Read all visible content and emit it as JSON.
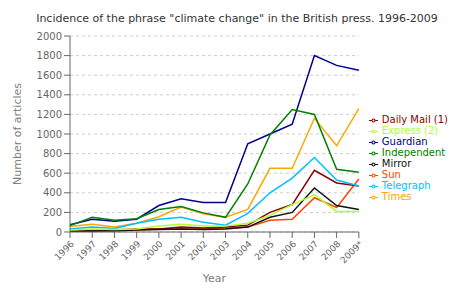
{
  "chart_data": {
    "type": "line",
    "title": "Incidence of the phrase \"climate change\" in the British press. 1996-2009",
    "xlabel": "Year",
    "ylabel": "Number of articles",
    "categories": [
      "1996",
      "1997",
      "1998",
      "1999",
      "2000",
      "2001",
      "2002",
      "2003",
      "2004",
      "2005",
      "2006",
      "2007",
      "2008",
      "2009*"
    ],
    "series": [
      {
        "name": "Guardian",
        "color": "#00008B",
        "values": [
          75,
          130,
          110,
          130,
          270,
          340,
          300,
          300,
          900,
          1000,
          1100,
          1800,
          1700,
          1650
        ]
      },
      {
        "name": "Sun",
        "color": "#FF4500",
        "values": [
          10,
          15,
          25,
          20,
          30,
          30,
          30,
          40,
          50,
          120,
          130,
          350,
          250,
          540
        ]
      },
      {
        "name": "Times",
        "color": "#FFA500",
        "values": [
          55,
          80,
          50,
          90,
          155,
          255,
          185,
          150,
          230,
          650,
          650,
          1160,
          880,
          1260
        ]
      },
      {
        "name": "Independent",
        "color": "#008000",
        "values": [
          65,
          150,
          120,
          135,
          230,
          260,
          195,
          150,
          490,
          990,
          1250,
          1200,
          640,
          610
        ]
      },
      {
        "name": "Daily Mail (1)",
        "color": "#8B0000",
        "values": [
          5,
          10,
          20,
          30,
          30,
          50,
          40,
          50,
          70,
          200,
          280,
          630,
          500,
          470
        ]
      },
      {
        "name": "Telegraph",
        "color": "#00BFFF",
        "values": [
          30,
          50,
          35,
          90,
          130,
          150,
          100,
          70,
          190,
          400,
          550,
          760,
          530,
          470
        ]
      },
      {
        "name": "Mirror",
        "color": "#111111",
        "values": [
          5,
          10,
          10,
          20,
          25,
          30,
          25,
          30,
          50,
          150,
          200,
          450,
          270,
          230
        ]
      },
      {
        "name": "Express (2)",
        "color": "#ADFF2F",
        "values": [
          20,
          30,
          25,
          30,
          60,
          80,
          60,
          60,
          90,
          170,
          280,
          380,
          210,
          210
        ]
      }
    ],
    "ylim": [
      0,
      2000
    ],
    "yticks": [
      0,
      200,
      400,
      600,
      800,
      1000,
      1200,
      1400,
      1600,
      1800,
      2000
    ],
    "grid": "y",
    "legend": "right"
  }
}
